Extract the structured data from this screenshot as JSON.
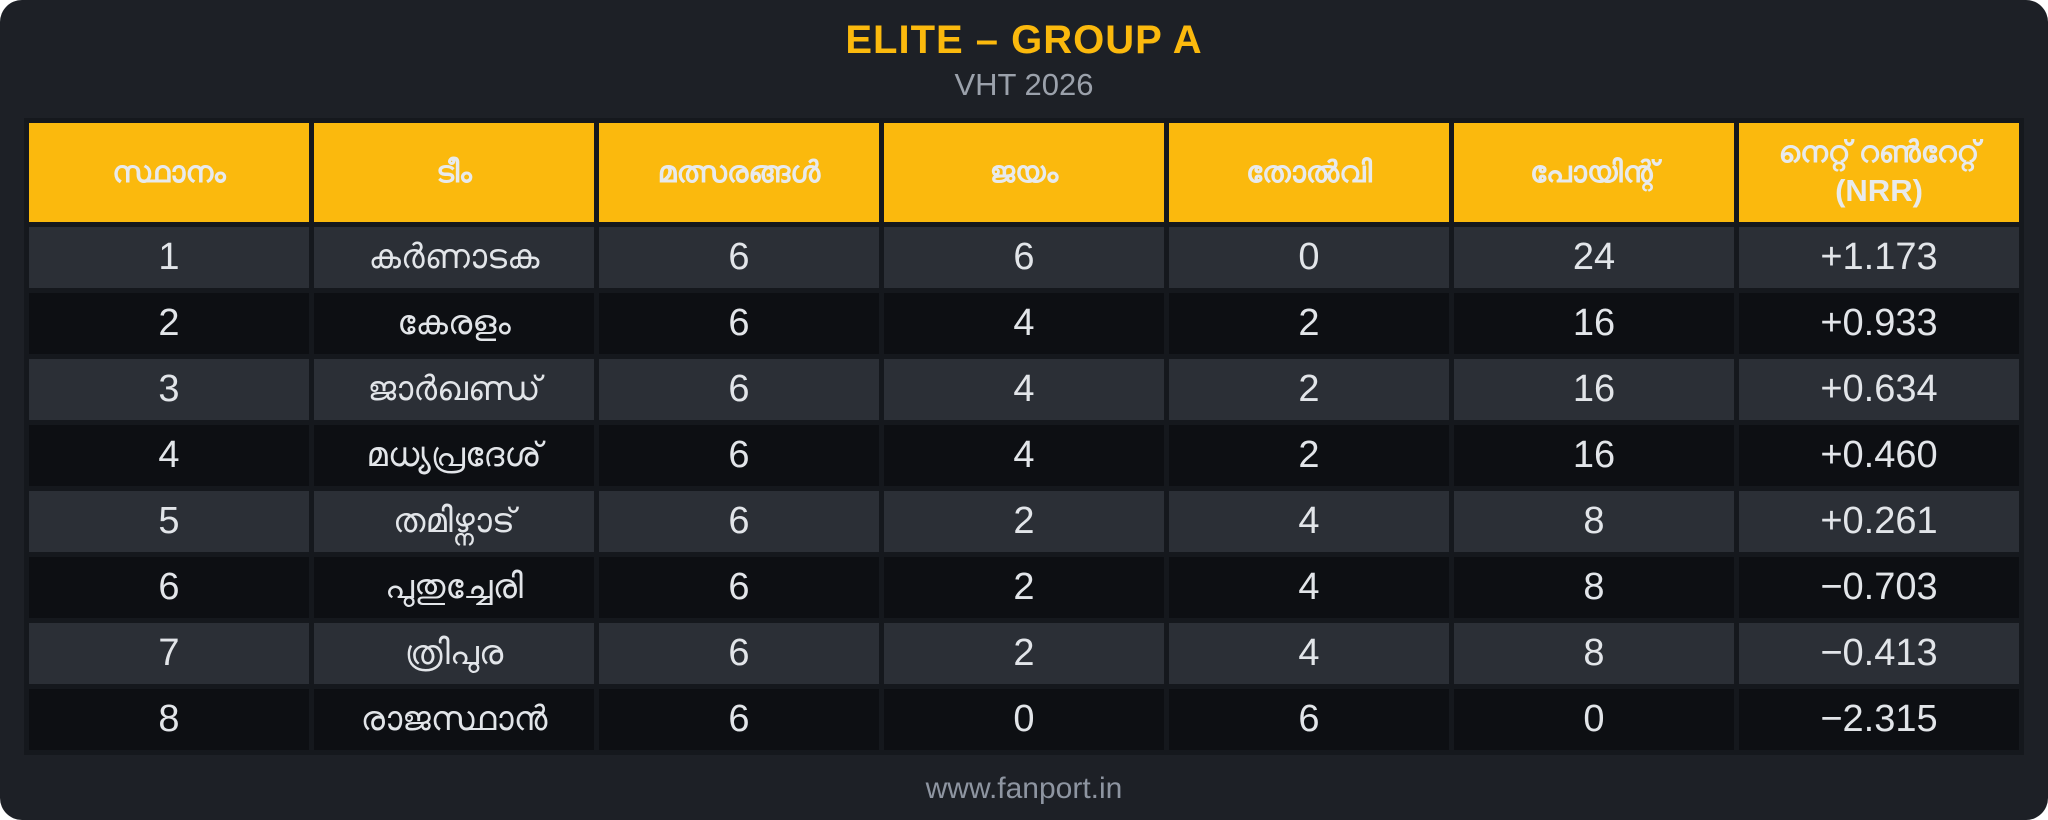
{
  "header": {
    "title": "ELITE – GROUP A",
    "subtitle": "VHT 2026"
  },
  "table": {
    "columns": [
      "സ്ഥാനം",
      "ടീം",
      "മത്സരങ്ങൾ",
      "ജയം",
      "തോൽവി",
      "പോയിന്റ്",
      "നെറ്റ് റൺറേറ്റ്"
    ],
    "nrr_subline": "(NRR)",
    "rows": [
      {
        "pos": "1",
        "team": "കർണാടക",
        "matches": "6",
        "wins": "6",
        "losses": "0",
        "points": "24",
        "nrr": "+1.173"
      },
      {
        "pos": "2",
        "team": "കേരളം",
        "matches": "6",
        "wins": "4",
        "losses": "2",
        "points": "16",
        "nrr": "+0.933"
      },
      {
        "pos": "3",
        "team": "ജാർഖണ്ഡ്",
        "matches": "6",
        "wins": "4",
        "losses": "2",
        "points": "16",
        "nrr": "+0.634"
      },
      {
        "pos": "4",
        "team": "മധ്യപ്രദേശ്",
        "matches": "6",
        "wins": "4",
        "losses": "2",
        "points": "16",
        "nrr": "+0.460"
      },
      {
        "pos": "5",
        "team": "തമിഴ്നാട്",
        "matches": "6",
        "wins": "2",
        "losses": "4",
        "points": "8",
        "nrr": "+0.261"
      },
      {
        "pos": "6",
        "team": "പുതുച്ചേരി",
        "matches": "6",
        "wins": "2",
        "losses": "4",
        "points": "8",
        "nrr": "−0.703"
      },
      {
        "pos": "7",
        "team": "ത്രിപുര",
        "matches": "6",
        "wins": "2",
        "losses": "4",
        "points": "8",
        "nrr": "−0.413"
      },
      {
        "pos": "8",
        "team": "രാജസ്ഥാൻ",
        "matches": "6",
        "wins": "0",
        "losses": "6",
        "points": "0",
        "nrr": "−2.315"
      }
    ]
  },
  "footer": {
    "website": "www.fanport.in"
  },
  "colors": {
    "canvas_bg": "#1d2026",
    "accent_yellow": "#fbb90d",
    "row_light": "#2b2f36",
    "row_dark": "#0d0f13",
    "cell_border": "#15181d",
    "text_light": "#e2e5e9",
    "subtitle_gray": "#9ba1ab",
    "footer_gray": "#8e95a1"
  },
  "chart_data": {
    "type": "table",
    "title": "ELITE – GROUP A",
    "subtitle": "VHT 2026",
    "columns": [
      "സ്ഥാനം (Position)",
      "ടീം (Team)",
      "മത്സരങ്ങൾ (Matches)",
      "ജയം (Wins)",
      "തോൽവി (Losses)",
      "പോയിന്റ് (Points)",
      "നെറ്റ് റൺറേറ്റ് (NRR)"
    ],
    "rows": [
      [
        "1",
        "കർണാടക",
        "6",
        "6",
        "0",
        "24",
        "+1.173"
      ],
      [
        "2",
        "കേരളം",
        "6",
        "4",
        "2",
        "16",
        "+0.933"
      ],
      [
        "3",
        "ജാർഖണ്ഡ്",
        "6",
        "4",
        "2",
        "16",
        "+0.634"
      ],
      [
        "4",
        "മധ്യപ്രദേശ്",
        "6",
        "4",
        "2",
        "16",
        "+0.460"
      ],
      [
        "5",
        "തമിഴ്നാട്",
        "6",
        "2",
        "4",
        "8",
        "+0.261"
      ],
      [
        "6",
        "പുതുച്ചേരി",
        "6",
        "2",
        "4",
        "8",
        "−0.703"
      ],
      [
        "7",
        "ത്രിപുര",
        "6",
        "2",
        "4",
        "8",
        "−0.413"
      ],
      [
        "8",
        "രാജസ്ഥാൻ",
        "6",
        "0",
        "6",
        "0",
        "−2.315"
      ]
    ],
    "source": "www.fanport.in"
  }
}
